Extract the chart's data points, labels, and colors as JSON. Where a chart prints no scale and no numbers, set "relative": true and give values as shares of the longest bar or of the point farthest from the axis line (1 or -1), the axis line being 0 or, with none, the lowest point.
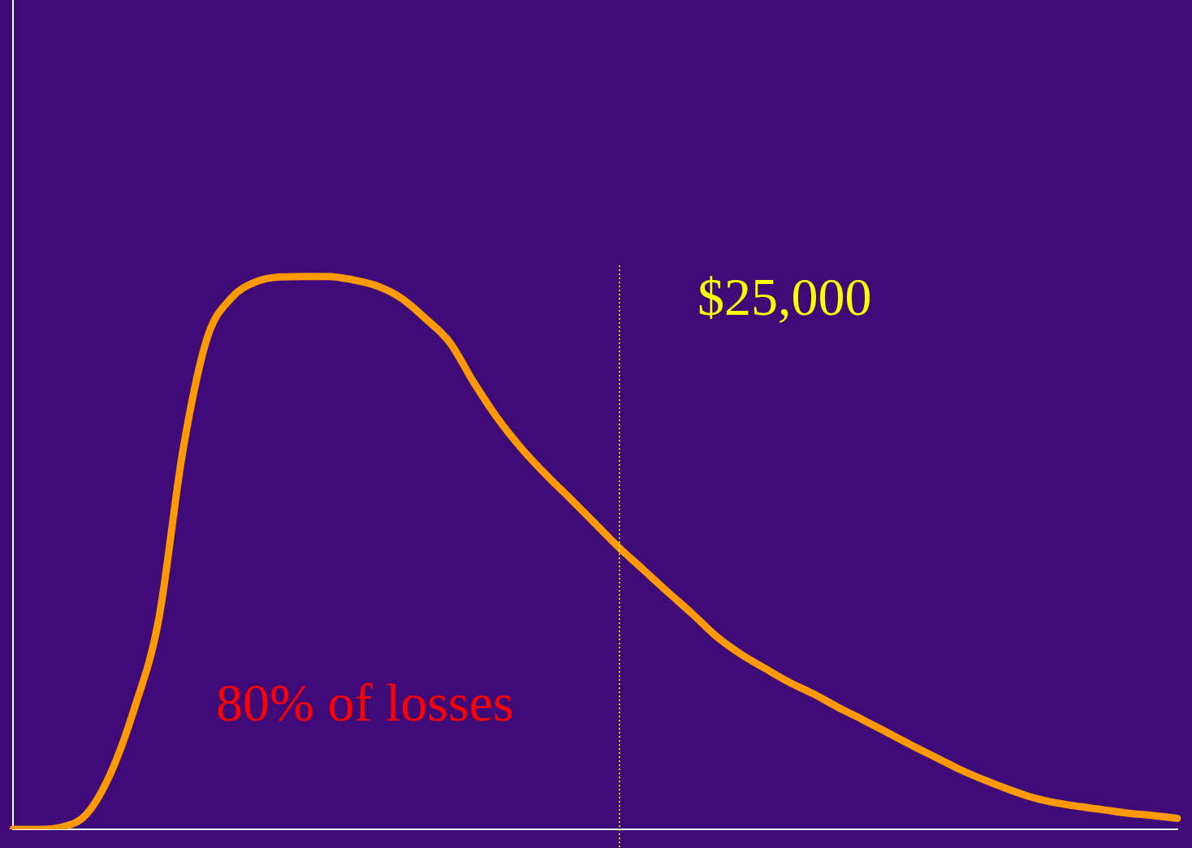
{
  "chart_data": {
    "type": "line",
    "relative": true,
    "categories": [
      null,
      null,
      null,
      null,
      null,
      null,
      null,
      null,
      null,
      null,
      null,
      null,
      null,
      null,
      null,
      null,
      null,
      null,
      null,
      null,
      null,
      null,
      null,
      null,
      null,
      null,
      null,
      null,
      null,
      null,
      null,
      null,
      null,
      null,
      null,
      null,
      null,
      null,
      null,
      null,
      null,
      null,
      null,
      null,
      null,
      null,
      null,
      null,
      null
    ],
    "series": [
      {
        "color": "#ff9900",
        "values": [
          0,
          0,
          0.004,
          0.026,
          0.099,
          0.218,
          0.378,
          0.684,
          0.888,
          0.961,
          0.99,
          0.999,
          1,
          1,
          0.994,
          0.983,
          0.961,
          0.924,
          0.881,
          0.808,
          0.742,
          0.687,
          0.64,
          0.597,
          0.553,
          0.509,
          0.469,
          0.429,
          0.39,
          0.349,
          0.317,
          0.291,
          0.266,
          0.245,
          0.221,
          0.199,
          0.176,
          0.153,
          0.131,
          0.109,
          0.09,
          0.073,
          0.058,
          0.048,
          0.041,
          0.035,
          0.029,
          0.025,
          0.02
        ]
      }
    ],
    "annotations": [
      "$25,000",
      "80% of losses"
    ],
    "grid": false,
    "legend": false,
    "marker": "none",
    "line_style": "solid"
  }
}
